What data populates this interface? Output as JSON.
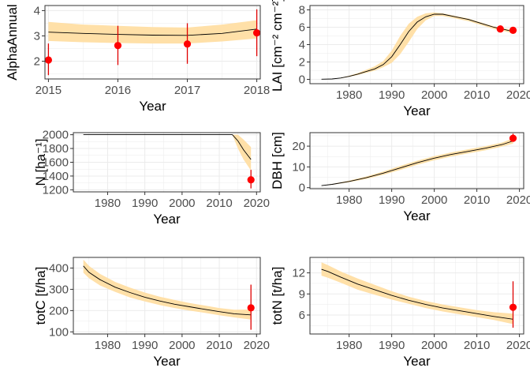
{
  "colors": {
    "band": "#FFE0A8",
    "line": "#000000",
    "point": "#FF0000",
    "errorbar": "#E00000",
    "grid": "#EBEBEB",
    "panel_border": "#333333"
  },
  "chart_data": [
    {
      "id": "alpha",
      "type": "line",
      "xlabel": "Year",
      "ylabel": "AlphaAnnual",
      "xlim": [
        2014.95,
        2018.05
      ],
      "ylim": [
        1.3,
        4.2
      ],
      "xticks": [
        2015,
        2016,
        2017,
        2018
      ],
      "xtick_labels": [
        "2015",
        "2016",
        "2017",
        "2018"
      ],
      "yticks": [
        2,
        3,
        4
      ],
      "ytick_labels": [
        "2",
        "3",
        "4"
      ],
      "series": [
        {
          "x": [
            2015,
            2015.5,
            2016,
            2016.5,
            2017,
            2017.5,
            2018
          ],
          "y": [
            3.15,
            3.1,
            3.06,
            3.03,
            3.02,
            3.1,
            3.27
          ],
          "lower": [
            2.8,
            2.75,
            2.72,
            2.7,
            2.7,
            2.78,
            2.9
          ],
          "upper": [
            3.55,
            3.45,
            3.4,
            3.35,
            3.33,
            3.45,
            3.62
          ]
        }
      ],
      "observations": [
        {
          "x": 2015,
          "y": 2.05,
          "low": 1.45,
          "high": 2.7
        },
        {
          "x": 2016,
          "y": 2.62,
          "low": 1.85,
          "high": 3.4
        },
        {
          "x": 2017,
          "y": 2.68,
          "low": 1.9,
          "high": 3.5
        },
        {
          "x": 2018,
          "y": 3.12,
          "low": 2.2,
          "high": 4.05
        }
      ]
    },
    {
      "id": "lai",
      "type": "line",
      "xlabel": "Year",
      "ylabel": "LAI [cm⁻² cm⁻²]",
      "xlim": [
        1970.8,
        2021
      ],
      "ylim": [
        -0.5,
        8.5
      ],
      "xticks": [
        1980,
        1990,
        2000,
        2010,
        2020
      ],
      "xtick_labels": [
        "1980",
        "1990",
        "2000",
        "2010",
        "2020"
      ],
      "yticks": [
        0,
        2,
        4,
        6,
        8
      ],
      "ytick_labels": [
        "0",
        "2",
        "4",
        "6",
        "8"
      ],
      "series": [
        {
          "x": [
            1973.5,
            1976,
            1978,
            1980,
            1982,
            1984,
            1986,
            1988,
            1990,
            1992,
            1994,
            1996,
            1998,
            2000,
            2002,
            2004,
            2006,
            2008,
            2010,
            2012,
            2014,
            2016,
            2018.5
          ],
          "y": [
            0.02,
            0.05,
            0.15,
            0.35,
            0.6,
            0.9,
            1.2,
            1.7,
            2.6,
            4.0,
            5.5,
            6.6,
            7.2,
            7.5,
            7.5,
            7.3,
            7.1,
            6.9,
            6.6,
            6.3,
            6.0,
            5.8,
            5.5
          ],
          "lower": [
            0.02,
            0.05,
            0.12,
            0.3,
            0.5,
            0.75,
            1.0,
            1.4,
            1.9,
            2.9,
            4.3,
            5.8,
            6.8,
            7.3,
            7.3,
            7.1,
            6.9,
            6.7,
            6.4,
            6.1,
            5.8,
            5.6,
            5.3
          ],
          "upper": [
            0.02,
            0.05,
            0.18,
            0.42,
            0.72,
            1.1,
            1.5,
            2.1,
            3.3,
            5.0,
            6.4,
            7.2,
            7.6,
            7.7,
            7.6,
            7.4,
            7.2,
            7.0,
            6.7,
            6.4,
            6.1,
            5.9,
            5.7
          ]
        }
      ],
      "observations": [
        {
          "x": 2015.5,
          "y": 5.8,
          "low": 5.5,
          "high": 6.2
        },
        {
          "x": 2018.5,
          "y": 5.65,
          "low": 5.3,
          "high": 6.0
        }
      ]
    },
    {
      "id": "n",
      "type": "line",
      "xlabel": "Year",
      "ylabel": "N [ha⁻¹]",
      "xlim": [
        1970.8,
        2021
      ],
      "ylim": [
        1170,
        2030
      ],
      "xticks": [
        1980,
        1990,
        2000,
        2010,
        2020
      ],
      "xtick_labels": [
        "1980",
        "1990",
        "2000",
        "2010",
        "2020"
      ],
      "yticks": [
        1200,
        1400,
        1600,
        1800,
        2000
      ],
      "ytick_labels": [
        "1200",
        "1400",
        "1600",
        "1800",
        "2000"
      ],
      "series": [
        {
          "x": [
            1973.5,
            1990,
            2000,
            2010,
            2013.5,
            2015,
            2016.5,
            2018.5
          ],
          "y": [
            2000,
            2000,
            2000,
            2000,
            2000,
            1910,
            1780,
            1640
          ],
          "lower": [
            2000,
            2000,
            2000,
            2000,
            2000,
            1800,
            1640,
            1480
          ],
          "upper": [
            2000,
            2000,
            2000,
            2000,
            2000,
            2000,
            1930,
            1820
          ]
        }
      ],
      "observations": [
        {
          "x": 2018.5,
          "y": 1345,
          "low": 1220,
          "high": 1490
        }
      ]
    },
    {
      "id": "dbh",
      "type": "line",
      "xlabel": "Year",
      "ylabel": "DBH [cm]",
      "xlim": [
        1970.8,
        2021
      ],
      "ylim": [
        -0.5,
        26.5
      ],
      "xticks": [
        1980,
        1990,
        2000,
        2010,
        2020
      ],
      "xtick_labels": [
        "1980",
        "1990",
        "2000",
        "2010",
        "2020"
      ],
      "yticks": [
        0,
        10,
        20
      ],
      "ytick_labels": [
        "0",
        "10",
        "20"
      ],
      "series": [
        {
          "x": [
            1973.5,
            1976,
            1980,
            1984,
            1988,
            1992,
            1996,
            2000,
            2004,
            2008,
            2012,
            2016,
            2018.5
          ],
          "y": [
            1.0,
            1.6,
            3.0,
            4.8,
            7.0,
            9.5,
            12.0,
            14.2,
            16.0,
            17.5,
            19.0,
            20.8,
            22.5
          ],
          "lower": [
            1.0,
            1.4,
            2.6,
            4.2,
            6.2,
            8.5,
            11.0,
            13.2,
            15.0,
            16.5,
            18.0,
            19.8,
            21.2
          ],
          "upper": [
            1.0,
            1.8,
            3.4,
            5.4,
            7.8,
            10.5,
            13.0,
            15.2,
            17.0,
            18.5,
            20.0,
            21.8,
            23.8
          ]
        }
      ],
      "observations": [
        {
          "x": 2018.5,
          "y": 23.8,
          "low": 22.2,
          "high": 26.0
        }
      ]
    },
    {
      "id": "totc",
      "type": "line",
      "xlabel": "Year",
      "ylabel": "totC [t/ha]",
      "xlim": [
        1970.8,
        2021
      ],
      "ylim": [
        90,
        450
      ],
      "xticks": [
        1980,
        1990,
        2000,
        2010,
        2020
      ],
      "xtick_labels": [
        "1980",
        "1990",
        "2000",
        "2010",
        "2020"
      ],
      "yticks": [
        100,
        200,
        300,
        400
      ],
      "ytick_labels": [
        "100",
        "200",
        "300",
        "400"
      ],
      "series": [
        {
          "x": [
            1973.5,
            1975,
            1978,
            1982,
            1986,
            1990,
            1994,
            1998,
            2002,
            2006,
            2010,
            2014,
            2018.5
          ],
          "y": [
            410,
            380,
            345,
            310,
            285,
            263,
            245,
            230,
            218,
            206,
            195,
            185,
            180
          ],
          "lower": [
            378,
            352,
            318,
            288,
            262,
            243,
            226,
            212,
            200,
            190,
            178,
            168,
            158
          ],
          "upper": [
            440,
            410,
            372,
            335,
            308,
            285,
            265,
            250,
            236,
            224,
            212,
            204,
            205
          ]
        }
      ],
      "observations": [
        {
          "x": 2018.5,
          "y": 213,
          "low": 110,
          "high": 322
        }
      ]
    },
    {
      "id": "totn",
      "type": "line",
      "xlabel": "Year",
      "ylabel": "totN [t/ha]",
      "xlim": [
        1970.8,
        2021
      ],
      "ylim": [
        3.3,
        14.2
      ],
      "xticks": [
        1980,
        1990,
        2000,
        2010,
        2020
      ],
      "xtick_labels": [
        "1980",
        "1990",
        "2000",
        "2010",
        "2020"
      ],
      "yticks": [
        6,
        9,
        12
      ],
      "ytick_labels": [
        "6",
        "9",
        "12"
      ],
      "series": [
        {
          "x": [
            1973.5,
            1975,
            1978,
            1982,
            1986,
            1990,
            1994,
            1998,
            2002,
            2006,
            2010,
            2014,
            2018.5
          ],
          "y": [
            12.5,
            12.2,
            11.4,
            10.4,
            9.6,
            8.8,
            8.1,
            7.5,
            7.0,
            6.6,
            6.2,
            5.8,
            5.4
          ],
          "lower": [
            11.6,
            11.3,
            10.6,
            9.6,
            8.9,
            8.2,
            7.6,
            7.0,
            6.5,
            6.1,
            5.7,
            5.3,
            4.7
          ],
          "upper": [
            13.5,
            13.1,
            12.2,
            11.2,
            10.3,
            9.4,
            8.6,
            8.0,
            7.5,
            7.1,
            6.7,
            6.4,
            6.2
          ]
        }
      ],
      "observations": [
        {
          "x": 2018.5,
          "y": 7.1,
          "low": 4.2,
          "high": 10.8
        }
      ]
    }
  ]
}
